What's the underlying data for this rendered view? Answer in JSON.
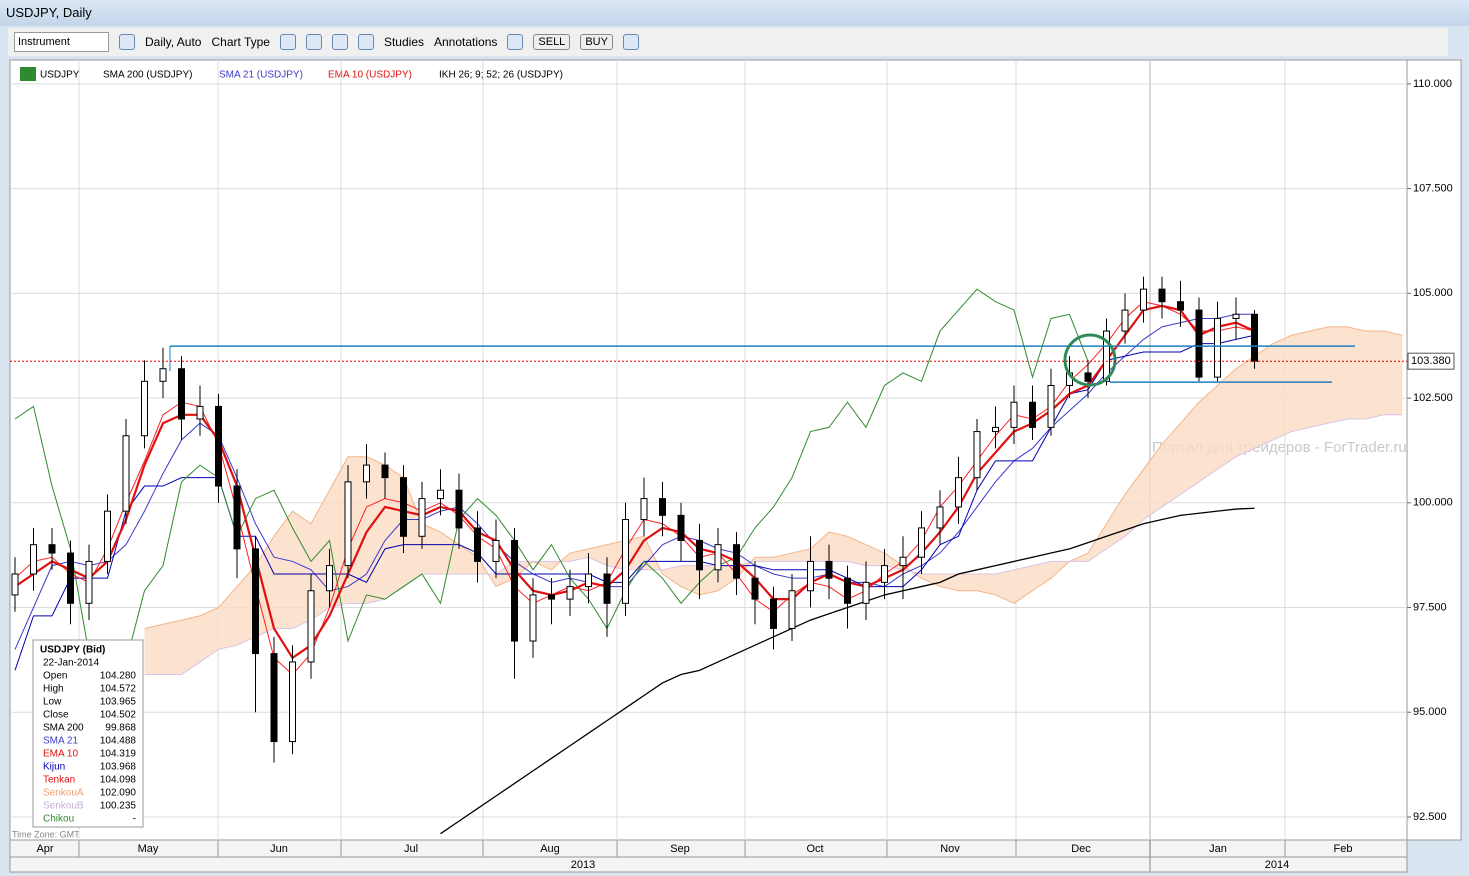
{
  "window": {
    "title": "USDJPY, Daily"
  },
  "toolbar": {
    "instrument": "Instrument",
    "period": "Daily, Auto",
    "chart_type": "Chart Type",
    "studies": "Studies",
    "annotations": "Annotations",
    "sell": "SELL",
    "buy": "BUY"
  },
  "legend": [
    "USDJPY",
    "SMA 200 (USDJPY)",
    "SMA 21 (USDJPY)",
    "EMA 10 (USDJPY)",
    "IKH 26; 9; 52; 26 (USDJPY)"
  ],
  "watermark": "Портал для трейдеров - ForTrader.ru",
  "timezone": "Time Zone: GMT",
  "info_box": {
    "title": "USDJPY (Bid)",
    "date": "22-Jan-2014",
    "rows": [
      [
        "Open",
        "104.280"
      ],
      [
        "High",
        "104.572"
      ],
      [
        "Low",
        "103.965"
      ],
      [
        "Close",
        "104.502"
      ],
      [
        "SMA 200",
        "99.868"
      ],
      [
        "SMA 21",
        "104.488"
      ],
      [
        "EMA 10",
        "104.319"
      ],
      [
        "Kijun",
        "103.968"
      ],
      [
        "Tenkan",
        "104.098"
      ],
      [
        "SenkouA",
        "102.090"
      ],
      [
        "SenkouB",
        "100.235"
      ],
      [
        "Chikou",
        "-"
      ]
    ]
  },
  "chart_data": {
    "type": "candlestick",
    "months": [
      "Apr",
      "May",
      "Jun",
      "Jul",
      "Aug",
      "Sep",
      "Oct",
      "Nov",
      "Dec",
      "Jan",
      "Feb"
    ],
    "years": [
      "2013",
      "2014"
    ],
    "ylim": [
      91.95,
      110.57
    ],
    "yticks": [
      {
        "value": 92.5,
        "label": "92.500"
      },
      {
        "value": 95,
        "label": "95.000"
      },
      {
        "value": 97.5,
        "label": "97.500"
      },
      {
        "value": 100,
        "label": "100.000"
      },
      {
        "value": 102.5,
        "label": "102.500"
      },
      {
        "value": 105,
        "label": "105.000"
      },
      {
        "value": 107.5,
        "label": "107.500"
      },
      {
        "value": 110,
        "label": "110.000"
      }
    ],
    "grid": true,
    "last_price": {
      "value": 103.38,
      "label": "103.380"
    },
    "hlines": [
      {
        "value": 103.74,
        "color": "#1f7fc0"
      },
      {
        "value": 102.88,
        "color": "#1f7fc0"
      }
    ],
    "candles": {
      "open": [
        97.8,
        98.3,
        99.0,
        98.8,
        97.6,
        98.6,
        99.8,
        101.6,
        102.9,
        103.2,
        102.0,
        102.3,
        100.4,
        98.9,
        96.4,
        94.3,
        96.2,
        97.9,
        98.5,
        100.5,
        100.9,
        100.6,
        99.2,
        100.1,
        100.3,
        99.4,
        98.6,
        99.1,
        96.7,
        97.8,
        97.7,
        98.0,
        98.3,
        97.6,
        99.6,
        100.1,
        99.7,
        99.1,
        98.4,
        99.0,
        98.2,
        97.7,
        97.0,
        97.9,
        98.6,
        98.2,
        97.6,
        98.1,
        98.5,
        98.7,
        99.4,
        99.9,
        100.6,
        101.7,
        101.8,
        102.4,
        101.8,
        102.8,
        103.1,
        102.9,
        104.1,
        104.6,
        105.1,
        104.8,
        104.6,
        103.0,
        104.4,
        104.5
      ],
      "high": [
        98.7,
        99.4,
        99.4,
        99.1,
        99.0,
        100.2,
        102.0,
        103.4,
        103.7,
        103.5,
        102.8,
        102.6,
        100.8,
        99.2,
        96.8,
        96.6,
        98.3,
        98.9,
        100.9,
        101.4,
        101.2,
        100.9,
        100.5,
        100.8,
        100.7,
        99.8,
        99.6,
        99.4,
        98.2,
        98.2,
        98.4,
        98.8,
        98.7,
        100.0,
        100.6,
        100.5,
        100.0,
        99.5,
        99.4,
        99.3,
        98.6,
        98.0,
        98.3,
        99.2,
        99.0,
        98.5,
        98.6,
        98.9,
        99.2,
        99.8,
        100.3,
        101.1,
        102.0,
        102.3,
        102.8,
        102.8,
        103.2,
        103.5,
        103.4,
        104.4,
        105.0,
        105.4,
        105.4,
        105.3,
        104.9,
        104.8,
        104.9,
        104.6
      ],
      "low": [
        97.4,
        97.9,
        98.4,
        97.1,
        97.2,
        98.3,
        99.5,
        101.3,
        102.5,
        101.5,
        101.6,
        100.0,
        98.2,
        95.0,
        93.8,
        94.0,
        95.8,
        97.5,
        98.2,
        100.1,
        100.1,
        98.8,
        98.9,
        99.7,
        98.9,
        98.1,
        98.2,
        95.8,
        96.3,
        97.1,
        97.3,
        97.6,
        96.8,
        97.3,
        99.2,
        99.2,
        98.6,
        97.7,
        98.1,
        97.8,
        97.1,
        96.5,
        96.7,
        97.5,
        97.7,
        97.0,
        97.2,
        97.7,
        97.7,
        98.3,
        99.0,
        99.5,
        100.3,
        101.3,
        101.4,
        101.5,
        101.6,
        102.5,
        102.5,
        102.8,
        103.8,
        104.3,
        104.4,
        104.2,
        102.9,
        102.9,
        103.9,
        103.2
      ],
      "close": [
        98.3,
        99.0,
        98.8,
        97.6,
        98.6,
        99.8,
        101.6,
        102.9,
        103.2,
        102.0,
        102.3,
        100.4,
        98.9,
        96.4,
        94.3,
        96.2,
        97.9,
        98.5,
        100.5,
        100.9,
        100.6,
        99.2,
        100.1,
        100.3,
        99.4,
        98.6,
        99.1,
        96.7,
        97.8,
        97.7,
        98.0,
        98.3,
        97.6,
        99.6,
        100.1,
        99.7,
        99.1,
        98.4,
        99.0,
        98.2,
        97.7,
        97.0,
        97.9,
        98.6,
        98.2,
        97.6,
        98.1,
        98.5,
        98.7,
        99.4,
        99.9,
        100.6,
        101.7,
        101.8,
        102.4,
        101.8,
        102.8,
        103.1,
        102.9,
        104.1,
        104.6,
        105.1,
        104.8,
        104.6,
        103.0,
        104.4,
        104.5,
        103.38
      ]
    },
    "series": [
      {
        "color": "#000000",
        "values": [
          null,
          null,
          null,
          null,
          null,
          null,
          null,
          null,
          null,
          null,
          null,
          null,
          null,
          null,
          null,
          null,
          null,
          null,
          null,
          null,
          null,
          null,
          null,
          92.1,
          92.4,
          92.7,
          93.0,
          93.3,
          93.6,
          93.9,
          94.2,
          94.5,
          94.8,
          95.1,
          95.4,
          95.7,
          95.9,
          96.0,
          96.2,
          96.4,
          96.6,
          96.8,
          97.0,
          97.2,
          97.35,
          97.5,
          97.65,
          97.8,
          97.9,
          98.0,
          98.1,
          98.3,
          98.4,
          98.5,
          98.6,
          98.7,
          98.8,
          98.9,
          99.05,
          99.2,
          99.35,
          99.5,
          99.6,
          99.7,
          99.75,
          99.8,
          99.85,
          99.87
        ]
      },
      {
        "color": "#3a3acc",
        "values": [
          96.5,
          97.5,
          98.5,
          98.6,
          98.5,
          98.6,
          99.0,
          99.8,
          100.7,
          101.5,
          101.9,
          101.6,
          100.6,
          99.5,
          98.7,
          98.6,
          98.4,
          97.9,
          98.0,
          98.3,
          99.1,
          99.6,
          99.6,
          99.8,
          99.9,
          99.5,
          99.0,
          98.6,
          98.3,
          98.1,
          98.2,
          98.1,
          98.0,
          98.0,
          98.5,
          99.0,
          99.2,
          99.1,
          98.9,
          98.8,
          98.5,
          98.3,
          98.2,
          98.2,
          98.3,
          98.1,
          98.1,
          98.0,
          98.3,
          98.5,
          98.8,
          99.3,
          99.9,
          100.5,
          101.0,
          101.3,
          101.8,
          102.2,
          102.6,
          103.1,
          103.5,
          103.9,
          104.2,
          104.3,
          104.4,
          104.4,
          104.5,
          104.5
        ]
      },
      {
        "color": "#e01010",
        "values": [
          98.0,
          98.3,
          98.6,
          98.4,
          98.2,
          98.6,
          99.6,
          100.9,
          101.9,
          102.1,
          102.1,
          101.5,
          100.4,
          98.7,
          97.0,
          96.3,
          96.6,
          97.3,
          98.3,
          99.3,
          99.9,
          99.8,
          99.7,
          99.9,
          99.8,
          99.3,
          99.1,
          98.4,
          97.9,
          97.8,
          97.9,
          98.1,
          98.0,
          98.4,
          99.1,
          99.4,
          99.3,
          98.9,
          98.8,
          98.6,
          98.2,
          97.7,
          97.7,
          98.1,
          98.3,
          98.1,
          98.0,
          98.2,
          98.4,
          98.8,
          99.3,
          99.9,
          100.7,
          101.2,
          101.7,
          101.9,
          102.2,
          102.6,
          102.8,
          103.4,
          104.0,
          104.6,
          104.7,
          104.6,
          104.0,
          104.2,
          104.3,
          104.1
        ]
      },
      {
        "color": "#0000b0",
        "values": [
          96.0,
          97.3,
          97.3,
          98.2,
          98.2,
          98.2,
          99.8,
          100.4,
          100.4,
          100.6,
          100.6,
          100.6,
          99.2,
          99.2,
          98.3,
          98.3,
          98.3,
          98.3,
          98.3,
          98.1,
          98.9,
          99.0,
          99.0,
          99.0,
          99.0,
          98.8,
          98.3,
          98.3,
          98.3,
          98.3,
          98.3,
          98.3,
          98.1,
          98.1,
          98.6,
          98.6,
          98.6,
          98.6,
          98.5,
          98.5,
          98.5,
          98.4,
          98.4,
          98.4,
          98.4,
          98.2,
          98.0,
          98.0,
          98.0,
          98.4,
          99.0,
          99.2,
          100.3,
          101.0,
          101.0,
          101.0,
          101.8,
          102.6,
          102.7,
          103.4,
          103.5,
          103.6,
          103.6,
          103.6,
          103.8,
          103.8,
          103.9,
          104.0
        ]
      },
      {
        "color": "#ff2020",
        "values": [
          98.2,
          98.6,
          98.7,
          98.3,
          98.1,
          98.9,
          100.0,
          101.0,
          102.1,
          102.4,
          102.3,
          101.4,
          99.8,
          98.0,
          96.3,
          95.9,
          96.4,
          97.5,
          98.9,
          99.9,
          100.1,
          100.0,
          99.8,
          100.0,
          99.7,
          99.2,
          98.9,
          98.0,
          97.6,
          97.8,
          98.0,
          97.9,
          98.1,
          98.9,
          99.6,
          99.5,
          99.2,
          98.7,
          98.8,
          98.3,
          97.7,
          97.4,
          97.8,
          98.1,
          98.0,
          97.7,
          97.9,
          98.3,
          98.6,
          99.1,
          99.9,
          100.4,
          101.0,
          101.6,
          102.1,
          102.0,
          102.3,
          102.9,
          103.3,
          103.8,
          104.4,
          104.8,
          104.7,
          104.5,
          104.1,
          104.1,
          104.2,
          104.1
        ]
      },
      {
        "color": "#f4b58a",
        "values": [
          null,
          null,
          null,
          null,
          null,
          null,
          null,
          97.0,
          97.1,
          97.2,
          97.3,
          97.5,
          98.0,
          98.5,
          99.2,
          99.8,
          99.5,
          100.3,
          101.1,
          101.1,
          100.9,
          100.6,
          99.5,
          99.3,
          99.0,
          98.7,
          98.0,
          98.2,
          98.6,
          98.4,
          98.8,
          98.9,
          99.0,
          99.1,
          99.2,
          98.3,
          98.0,
          97.8,
          97.9,
          98.2,
          98.7,
          98.7,
          98.8,
          98.9,
          99.3,
          99.2,
          99.0,
          98.8,
          98.5,
          98.2,
          98.0,
          97.9,
          97.9,
          97.8,
          97.6,
          97.9,
          98.2,
          98.6,
          98.8,
          99.5,
          100.2,
          100.8,
          101.4,
          101.9,
          102.4,
          102.8,
          103.2,
          103.5,
          103.8,
          104.0,
          104.1,
          104.2,
          104.2,
          104.1,
          104.1,
          104.0
        ]
      },
      {
        "color": "#d8c4e4",
        "values": [
          null,
          null,
          null,
          null,
          null,
          null,
          null,
          95.9,
          95.9,
          95.9,
          96.2,
          96.5,
          96.6,
          96.8,
          97.0,
          97.0,
          97.2,
          97.5,
          97.6,
          97.6,
          97.7,
          98.0,
          98.3,
          98.3,
          98.3,
          98.3,
          98.3,
          98.6,
          98.6,
          98.6,
          98.6,
          98.7,
          98.5,
          98.4,
          98.4,
          98.4,
          98.5,
          98.5,
          98.5,
          98.5,
          98.6,
          98.6,
          98.6,
          98.6,
          98.6,
          98.6,
          98.5,
          98.5,
          98.4,
          98.3,
          98.3,
          98.3,
          98.3,
          98.3,
          98.4,
          98.5,
          98.6,
          98.6,
          98.6,
          98.9,
          99.2,
          99.6,
          99.9,
          100.2,
          100.5,
          100.8,
          101.1,
          101.3,
          101.5,
          101.7,
          101.8,
          101.9,
          102.0,
          102.0,
          102.1,
          102.1
        ]
      },
      {
        "color": "#2e8b2e",
        "values": [
          102.0,
          102.3,
          100.4,
          98.9,
          96.4,
          94.3,
          96.2,
          97.9,
          98.5,
          100.5,
          100.9,
          100.6,
          99.2,
          100.1,
          100.3,
          99.4,
          98.6,
          99.1,
          96.7,
          97.8,
          97.7,
          98.0,
          98.3,
          97.6,
          99.6,
          100.1,
          99.7,
          99.1,
          98.4,
          99.0,
          98.2,
          97.7,
          97.0,
          97.9,
          98.6,
          98.2,
          97.6,
          98.1,
          98.5,
          98.7,
          99.4,
          99.9,
          100.6,
          101.7,
          101.8,
          102.4,
          101.8,
          102.8,
          103.1,
          102.9,
          104.1,
          104.6,
          105.1,
          104.8,
          104.6,
          103.0,
          104.4,
          104.5,
          103.38
        ]
      }
    ],
    "cloud_fill": "#fbdcc4"
  }
}
